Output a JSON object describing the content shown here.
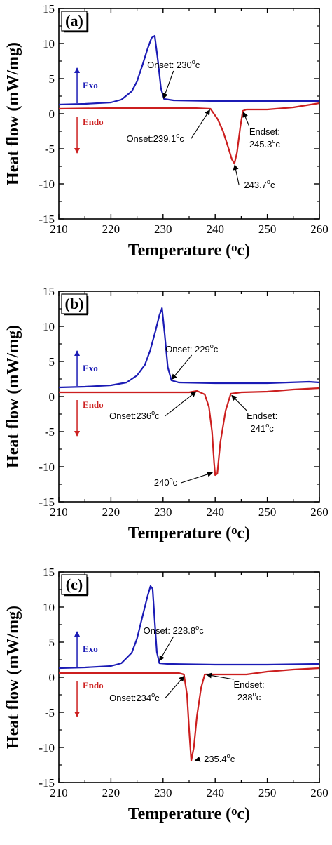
{
  "colors": {
    "exo": "#1b1bb5",
    "endo": "#cc1f1f",
    "axis": "#000000"
  },
  "chart_data": [
    {
      "type": "line",
      "panel_label": "(a)",
      "xlabel": "Temperature (oc)",
      "xlabel_main": "Temperature (",
      "xlabel_sup": "o",
      "xlabel_tail": "c)",
      "ylabel": "Heat flow (mW/mg)",
      "xlim": [
        210,
        260
      ],
      "ylim": [
        -15,
        15
      ],
      "xticks": [
        "210",
        "220",
        "230",
        "240",
        "250",
        "260"
      ],
      "yticks": [
        "15",
        "10",
        "5",
        "0",
        "-5",
        "-10",
        "-15"
      ],
      "legend": {
        "exo": "Exo",
        "endo": "Endo"
      },
      "series": [
        {
          "role": "exo",
          "x": [
            210,
            215,
            220,
            222,
            224,
            225,
            226,
            227,
            227.8,
            228.4,
            229.0,
            229.6,
            230.2,
            232,
            240,
            250,
            260
          ],
          "values": [
            1.3,
            1.4,
            1.6,
            2.0,
            3.2,
            4.6,
            6.8,
            9.2,
            10.8,
            11.1,
            7.6,
            3.6,
            2.1,
            1.9,
            1.8,
            1.8,
            1.8
          ]
        },
        {
          "role": "endo",
          "x": [
            210,
            220,
            230,
            236,
            239.1,
            240.5,
            241.5,
            242.5,
            243.2,
            243.7,
            244.2,
            244.8,
            245.3,
            246,
            250,
            255,
            260
          ],
          "values": [
            0.7,
            0.8,
            0.8,
            0.8,
            0.7,
            -0.8,
            -2.5,
            -4.8,
            -6.5,
            -7.1,
            -5.5,
            -2.0,
            0.4,
            0.6,
            0.6,
            0.9,
            1.5
          ]
        }
      ],
      "annotations": [
        {
          "text": "Onset: 230",
          "sup": "o",
          "tail": "c",
          "at": [
            230,
            2.0
          ],
          "label": [
            232,
            6.5
          ]
        },
        {
          "text": "Onset:239.1",
          "sup": "o",
          "tail": "c",
          "at": [
            239.1,
            0.7
          ],
          "label": [
            228.5,
            -4.0
          ]
        },
        {
          "text": "Endset:",
          "line2": "245.3",
          "sup": "o",
          "tail": "c",
          "at": [
            245.3,
            0.4
          ],
          "label": [
            249.5,
            -3.0
          ]
        },
        {
          "text": "243.7",
          "sup": "o",
          "tail": "c",
          "at": [
            243.7,
            -7.1
          ],
          "label": [
            248.5,
            -10.6
          ]
        }
      ]
    },
    {
      "type": "line",
      "panel_label": "(b)",
      "xlabel": "Temperature (oc)",
      "xlabel_main": "Temperature (",
      "xlabel_sup": "o",
      "xlabel_tail": "c)",
      "ylabel": "Heat flow (mW/mg)",
      "xlim": [
        210,
        260
      ],
      "ylim": [
        -15,
        15
      ],
      "xticks": [
        "210",
        "220",
        "230",
        "240",
        "250",
        "260"
      ],
      "yticks": [
        "15",
        "10",
        "5",
        "0",
        "-5",
        "-10",
        "-15"
      ],
      "legend": {
        "exo": "Exo",
        "endo": "Endo"
      },
      "series": [
        {
          "role": "exo",
          "x": [
            210,
            215,
            220,
            223,
            225,
            226.5,
            227.5,
            228.5,
            229.3,
            229.8,
            230.3,
            230.9,
            231.6,
            233,
            240,
            250,
            258,
            260
          ],
          "values": [
            1.3,
            1.4,
            1.6,
            2.0,
            3.0,
            4.5,
            6.5,
            9.2,
            11.6,
            12.6,
            9.0,
            4.2,
            2.3,
            2.0,
            1.9,
            1.9,
            2.1,
            2.0
          ]
        },
        {
          "role": "endo",
          "x": [
            210,
            220,
            230,
            235,
            236.5,
            238.0,
            238.8,
            239.4,
            239.8,
            240.0,
            240.4,
            241.0,
            242.0,
            243.0,
            245,
            250,
            255,
            260
          ],
          "values": [
            0.6,
            0.6,
            0.6,
            0.6,
            0.8,
            0.3,
            -1.5,
            -5.0,
            -9.5,
            -11.2,
            -11.0,
            -6.5,
            -2.0,
            0.4,
            0.6,
            0.7,
            1.0,
            1.2
          ]
        }
      ],
      "annotations": [
        {
          "text": "Onset: 229",
          "sup": "o",
          "tail": "c",
          "at": [
            231.5,
            2.3
          ],
          "label": [
            235.5,
            6.3
          ]
        },
        {
          "text": "Onset:236",
          "sup": "o",
          "tail": "c",
          "at": [
            236.5,
            0.8
          ],
          "label": [
            224.5,
            -3.2
          ]
        },
        {
          "text": "Endset:",
          "line2": "241",
          "sup": "o",
          "tail": "c",
          "at": [
            243,
            0.3
          ],
          "label": [
            249,
            -3.2
          ]
        },
        {
          "text": "240",
          "sup": "o",
          "tail": "c",
          "at": [
            239.7,
            -10.8
          ],
          "label": [
            230.5,
            -12.7
          ]
        }
      ]
    },
    {
      "type": "line",
      "panel_label": "(c)",
      "xlabel": "Temperature (oc)",
      "xlabel_main": "Temperature (",
      "xlabel_sup": "o",
      "xlabel_tail": "c)",
      "ylabel": "Heat flow (mW/mg)",
      "xlim": [
        210,
        260
      ],
      "ylim": [
        -15,
        15
      ],
      "xticks": [
        "210",
        "220",
        "230",
        "240",
        "250",
        "260"
      ],
      "yticks": [
        "15",
        "10",
        "5",
        "0",
        "-5",
        "-10",
        "-15"
      ],
      "legend": {
        "exo": "Exo",
        "endo": "Endo"
      },
      "series": [
        {
          "role": "exo",
          "x": [
            210,
            215,
            220,
            222,
            224,
            225,
            226,
            227,
            227.6,
            228.0,
            228.4,
            228.8,
            229.3,
            231,
            240,
            250,
            260
          ],
          "values": [
            1.3,
            1.4,
            1.6,
            2.0,
            3.5,
            5.5,
            8.5,
            11.5,
            13.0,
            12.6,
            8.0,
            3.6,
            2.0,
            1.9,
            1.8,
            1.8,
            1.9
          ]
        },
        {
          "role": "endo",
          "x": [
            210,
            220,
            230,
            233,
            234,
            234.6,
            235.0,
            235.4,
            235.9,
            236.5,
            237.3,
            238.0,
            240,
            246,
            250,
            255,
            260
          ],
          "values": [
            0.6,
            0.6,
            0.6,
            0.6,
            0.4,
            -2.5,
            -7.5,
            -11.9,
            -10.0,
            -5.5,
            -1.5,
            0.4,
            0.4,
            0.4,
            0.8,
            1.1,
            1.3
          ]
        }
      ],
      "annotations": [
        {
          "text": "Onset: 228.8",
          "sup": "o",
          "tail": "c",
          "at": [
            229.2,
            2.2
          ],
          "label": [
            232,
            6.2
          ]
        },
        {
          "text": "Onset:234",
          "sup": "o",
          "tail": "c",
          "at": [
            234.2,
            0.3
          ],
          "label": [
            224.5,
            -3.4
          ]
        },
        {
          "text": "Endset:",
          "line2": "238",
          "sup": "o",
          "tail": "c",
          "at": [
            238.1,
            0.4
          ],
          "label": [
            246.5,
            -1.5
          ]
        },
        {
          "text": "235.4",
          "sup": "o",
          "tail": "c",
          "at": [
            235.9,
            -11.9
          ],
          "label": [
            240.8,
            -12.1
          ]
        }
      ]
    }
  ]
}
